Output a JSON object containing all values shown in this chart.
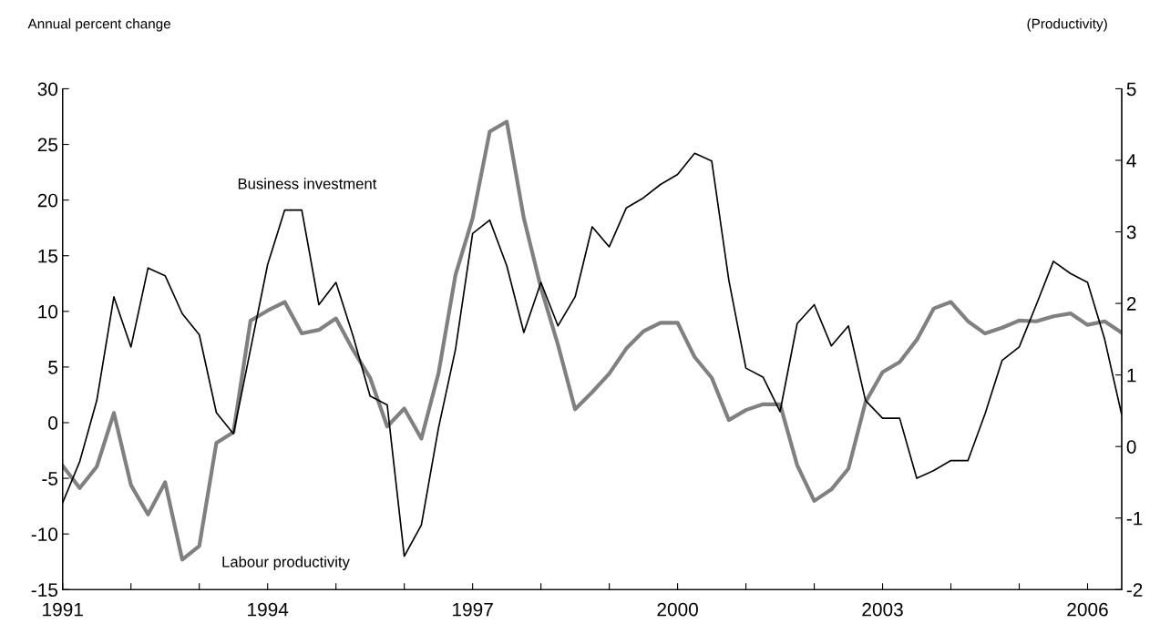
{
  "chart_data": {
    "type": "line",
    "ylabel": "Annual percent change",
    "y2label": "(Productivity)",
    "x": [
      1991,
      1991.25,
      1991.5,
      1991.75,
      1992,
      1992.25,
      1992.5,
      1992.75,
      1993,
      1993.25,
      1993.5,
      1993.75,
      1994,
      1994.25,
      1994.5,
      1994.75,
      1995,
      1995.25,
      1995.5,
      1995.75,
      1996,
      1996.25,
      1996.5,
      1996.75,
      1997,
      1997.25,
      1997.5,
      1997.75,
      1998,
      1998.25,
      1998.5,
      1998.75,
      1999,
      1999.25,
      1999.5,
      1999.75,
      2000,
      2000.25,
      2000.5,
      2000.75,
      2001,
      2001.25,
      2001.5,
      2001.75,
      2002,
      2002.25,
      2002.5,
      2002.75,
      2003,
      2003.25,
      2003.5,
      2003.75,
      2004,
      2004.25,
      2004.5,
      2004.75,
      2005,
      2005.25,
      2005.5,
      2005.75,
      2006,
      2006.25,
      2006.5
    ],
    "series": [
      {
        "name": "Business investment",
        "color": "#000000",
        "values": [
          -7.2,
          -3.5,
          2.0,
          11.3,
          6.8,
          13.9,
          13.2,
          9.8,
          7.9,
          0.9,
          -1.0,
          6.6,
          14.2,
          19.1,
          19.1,
          10.6,
          12.6,
          7.8,
          2.4,
          1.6,
          -12.0,
          -9.2,
          -0.5,
          6.6,
          17.0,
          18.2,
          14.1,
          8.1,
          12.6,
          8.7,
          11.3,
          17.6,
          15.8,
          19.3,
          20.2,
          21.4,
          22.3,
          24.2,
          23.5,
          12.8,
          4.9,
          4.1,
          1.0,
          8.9,
          10.6,
          6.9,
          8.7,
          2.0,
          0.4,
          0.4,
          -5.0,
          -4.3,
          -3.4,
          -3.4,
          0.8,
          5.6,
          6.8,
          10.6,
          14.5,
          13.4,
          12.6,
          7.5,
          0.7
        ]
      },
      {
        "name": "Labour productivity",
        "color": "#808080",
        "axis": "y2",
        "values": [
          -0.27,
          -0.58,
          -0.28,
          0.47,
          -0.54,
          -0.95,
          -0.5,
          -1.58,
          -1.39,
          0.05,
          0.2,
          1.76,
          1.9,
          2.02,
          1.58,
          1.63,
          1.79,
          1.35,
          0.96,
          0.28,
          0.53,
          0.11,
          1.02,
          2.4,
          3.19,
          4.4,
          4.54,
          3.19,
          2.22,
          1.42,
          0.52,
          0.76,
          1.02,
          1.37,
          1.61,
          1.73,
          1.73,
          1.25,
          0.96,
          0.37,
          0.51,
          0.59,
          0.59,
          -0.26,
          -0.76,
          -0.6,
          -0.31,
          0.62,
          1.04,
          1.18,
          1.49,
          1.93,
          2.02,
          1.75,
          1.58,
          1.66,
          1.76,
          1.75,
          1.82,
          1.86,
          1.7,
          1.75,
          1.59
        ]
      }
    ],
    "xlim": [
      1991,
      2006.5
    ],
    "xticks": [
      1991,
      {
        "value": 1992,
        "label": null
      },
      {
        "value": 1993,
        "label": null
      },
      1994,
      {
        "value": 1995,
        "label": null
      },
      {
        "value": 1996,
        "label": null
      },
      1997,
      {
        "value": 1998,
        "label": null
      },
      {
        "value": 1999,
        "label": null
      },
      2000,
      {
        "value": 2001,
        "label": null
      },
      {
        "value": 2002,
        "label": null
      },
      2003,
      {
        "value": 2004,
        "label": null
      },
      {
        "value": 2005,
        "label": null
      },
      2006
    ],
    "ylim": [
      -15,
      30
    ],
    "yticks": [
      -15,
      -10,
      -5,
      0,
      5,
      10,
      15,
      20,
      25,
      30
    ],
    "y2lim": [
      -2,
      5
    ],
    "y2ticks": [
      -2,
      -1,
      0,
      1,
      2,
      3,
      4,
      5
    ],
    "grid": false,
    "legend": false,
    "marker": "none",
    "line_style": "solid"
  }
}
